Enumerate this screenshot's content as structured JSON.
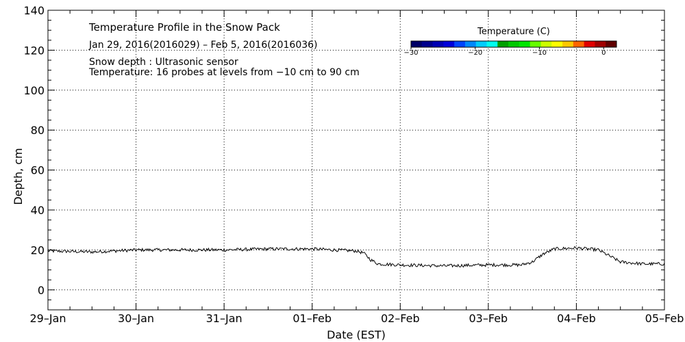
{
  "chart_data": {
    "type": "line",
    "title": "Temperature Profile in the Snow Pack",
    "subtitle": "Jan 29, 2016(2016029) – Feb  5, 2016(2016036)",
    "annotations": [
      "Snow depth : Ultrasonic sensor",
      "Temperature: 16 probes at levels from −10 cm to 90 cm"
    ],
    "xlabel": "Date (EST)",
    "ylabel": "Depth, cm",
    "x_ticks": [
      "29–Jan",
      "30–Jan",
      "31–Jan",
      "01–Feb",
      "02–Feb",
      "03–Feb",
      "04–Feb",
      "05–Feb"
    ],
    "xlim": [
      "2016-01-29",
      "2016-02-05"
    ],
    "ylim": [
      -10,
      140
    ],
    "y_ticks": [
      0,
      20,
      40,
      60,
      80,
      100,
      120,
      140
    ],
    "grid": true,
    "series": [
      {
        "color": "#000000",
        "x": [
          "2016-01-29 00:00",
          "2016-01-29 12:00",
          "2016-01-30 00:00",
          "2016-01-30 12:00",
          "2016-01-31 00:00",
          "2016-01-31 12:00",
          "2016-02-01 00:00",
          "2016-02-01 12:00",
          "2016-02-01 14:00",
          "2016-02-01 16:00",
          "2016-02-01 18:00",
          "2016-02-02 00:00",
          "2016-02-02 12:00",
          "2016-02-03 00:00",
          "2016-02-03 06:00",
          "2016-02-03 09:00",
          "2016-02-03 12:00",
          "2016-02-03 15:00",
          "2016-02-03 18:00",
          "2016-02-04 00:00",
          "2016-02-04 06:00",
          "2016-02-04 09:00",
          "2016-02-04 12:00",
          "2016-02-04 18:00",
          "2016-02-05 00:00"
        ],
        "y": [
          19.5,
          19,
          20,
          20,
          20,
          20.5,
          20.5,
          19.5,
          18.5,
          15,
          13,
          12.5,
          12,
          12.5,
          12.5,
          12.5,
          14,
          18,
          20.5,
          21,
          20,
          17,
          14,
          13,
          13
        ]
      }
    ],
    "colorbar": {
      "title": "Temperature (C)",
      "tick_labels": [
        "−30",
        "−20",
        "−10",
        "0"
      ],
      "ticks": [
        -30,
        -20,
        -10,
        0
      ],
      "range": [
        -30,
        2
      ],
      "colors": [
        "#000066",
        "#00008c",
        "#0000b3",
        "#0000d9",
        "#0044ff",
        "#0088ff",
        "#00ccff",
        "#00ffee",
        "#00a000",
        "#00c800",
        "#00e600",
        "#66ff00",
        "#ccff00",
        "#ffff00",
        "#ffc800",
        "#ff6600",
        "#e00000",
        "#a00000",
        "#600000"
      ]
    }
  }
}
